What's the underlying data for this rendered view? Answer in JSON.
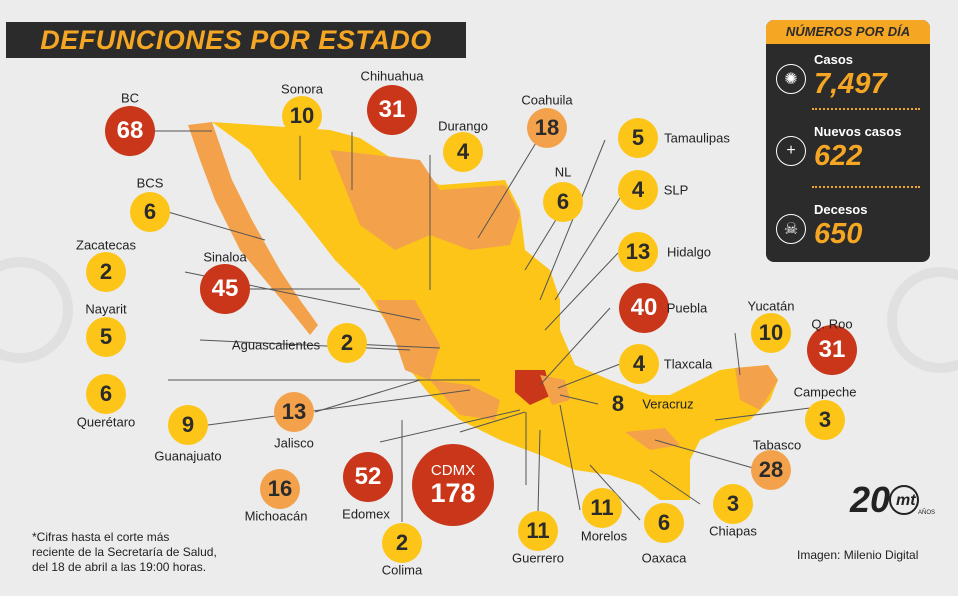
{
  "title": "DEFUNCIONES POR ESTADO",
  "panel": {
    "heading": "NÚMEROS POR DÍA",
    "stats": [
      {
        "label": "Casos",
        "value": "7,497",
        "icon": "virus-icon"
      },
      {
        "label": "Nuevos casos",
        "value": "622",
        "icon": "plus-icon"
      },
      {
        "label": "Decesos",
        "value": "650",
        "icon": "skull-icon"
      }
    ]
  },
  "states": [
    {
      "name": "BC",
      "deaths": "68",
      "level": "red"
    },
    {
      "name": "Sonora",
      "deaths": "10",
      "level": "yellow"
    },
    {
      "name": "Chihuahua",
      "deaths": "31",
      "level": "red"
    },
    {
      "name": "Durango",
      "deaths": "4",
      "level": "yellow"
    },
    {
      "name": "Coahuila",
      "deaths": "18",
      "level": "orange"
    },
    {
      "name": "Tamaulipas",
      "deaths": "5",
      "level": "yellow"
    },
    {
      "name": "NL",
      "deaths": "6",
      "level": "yellow"
    },
    {
      "name": "SLP",
      "deaths": "4",
      "level": "yellow"
    },
    {
      "name": "BCS",
      "deaths": "6",
      "level": "yellow"
    },
    {
      "name": "Hidalgo",
      "deaths": "13",
      "level": "yellow"
    },
    {
      "name": "Zacatecas",
      "deaths": "2",
      "level": "yellow"
    },
    {
      "name": "Sinaloa",
      "deaths": "45",
      "level": "red"
    },
    {
      "name": "Puebla",
      "deaths": "40",
      "level": "red"
    },
    {
      "name": "Nayarit",
      "deaths": "5",
      "level": "yellow"
    },
    {
      "name": "Yucatán",
      "deaths": "10",
      "level": "yellow"
    },
    {
      "name": "Q. Roo",
      "deaths": "31",
      "level": "red"
    },
    {
      "name": "Aguascalientes",
      "deaths": "2",
      "level": "yellow"
    },
    {
      "name": "Tlaxcala",
      "deaths": "4",
      "level": "yellow"
    },
    {
      "name": "Querétaro",
      "deaths": "6",
      "level": "yellow"
    },
    {
      "name": "Campeche",
      "deaths": "3",
      "level": "yellow"
    },
    {
      "name": "Veracruz",
      "deaths": "8",
      "level": "yellow"
    },
    {
      "name": "Guanajuato",
      "deaths": "9",
      "level": "yellow"
    },
    {
      "name": "Jalisco",
      "deaths": "13",
      "level": "orange"
    },
    {
      "name": "Tabasco",
      "deaths": "28",
      "level": "orange"
    },
    {
      "name": "CDMX",
      "deaths": "178",
      "level": "red"
    },
    {
      "name": "Michoacán",
      "deaths": "16",
      "level": "orange"
    },
    {
      "name": "Edomex",
      "deaths": "52",
      "level": "red"
    },
    {
      "name": "Morelos",
      "deaths": "11",
      "level": "yellow"
    },
    {
      "name": "Chiapas",
      "deaths": "3",
      "level": "yellow"
    },
    {
      "name": "Guerrero",
      "deaths": "11",
      "level": "yellow"
    },
    {
      "name": "Oaxaca",
      "deaths": "6",
      "level": "yellow"
    },
    {
      "name": "Colima",
      "deaths": "2",
      "level": "yellow"
    }
  ],
  "note": {
    "line1": "*Cifras hasta el corte más",
    "line2": "reciente de la Secretaría de Salud,",
    "line3": "del 18 de abril a las 19:00 horas."
  },
  "credit": "Imagen: Milenio Digital",
  "logo": {
    "number": "20",
    "brand": "mt",
    "sub": "AÑOS"
  },
  "colors": {
    "yellow": "#fcc517",
    "orange": "#f3a24b",
    "red": "#c9361a",
    "dark": "#2b2b2b",
    "accent": "#f5a623"
  }
}
